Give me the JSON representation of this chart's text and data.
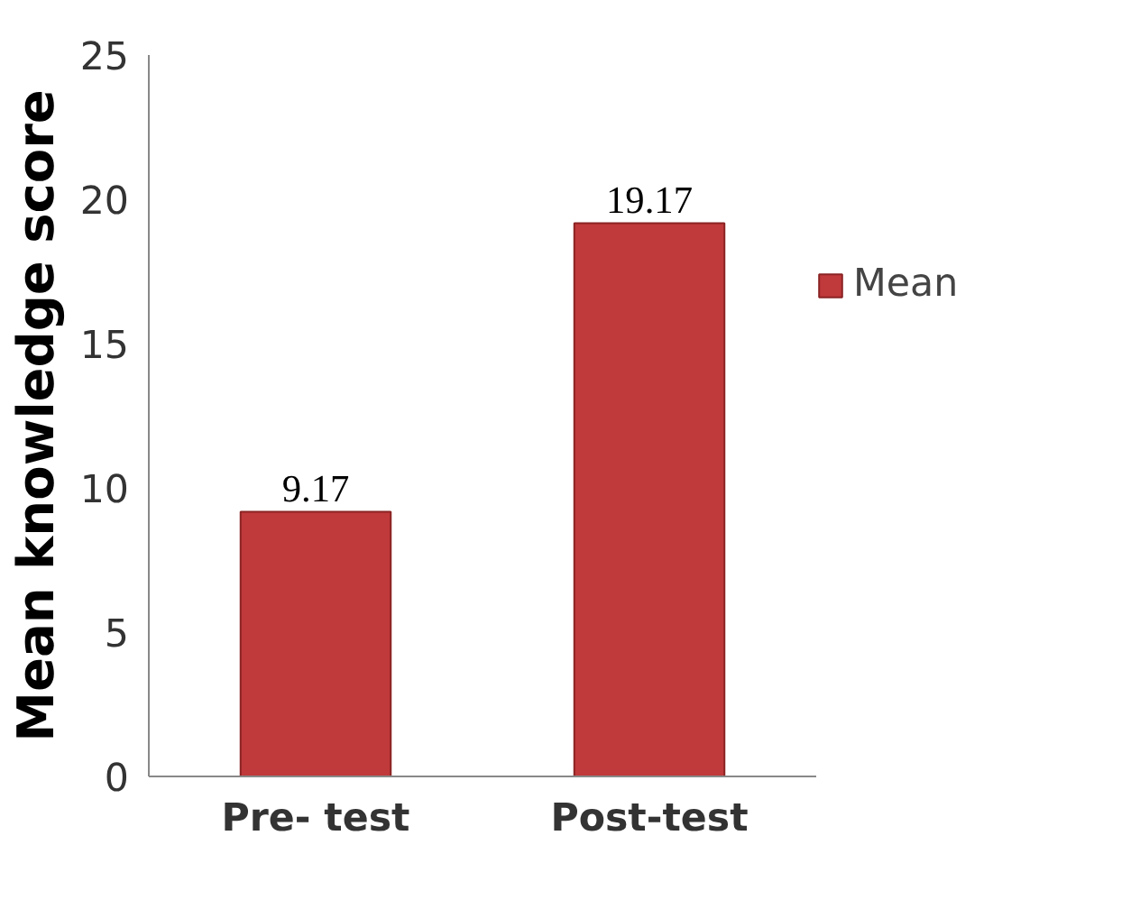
{
  "chart_data": {
    "type": "bar",
    "ylabel": "Mean knowledge score",
    "categories": [
      "Pre- test",
      "Post-test"
    ],
    "series": [
      {
        "name": "Mean",
        "color": "#c0393b",
        "values": [
          9.17,
          19.17
        ]
      }
    ],
    "ylim": [
      0,
      25
    ],
    "yticks": [
      0,
      5,
      10,
      15,
      20,
      25
    ],
    "grid": false,
    "legend": "right",
    "data_labels": true
  }
}
